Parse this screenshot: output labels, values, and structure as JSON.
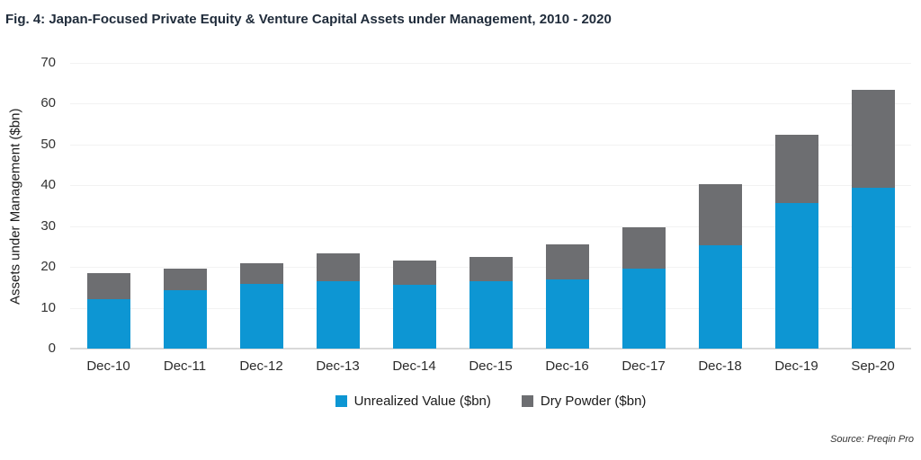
{
  "title": "Fig. 4: Japan-Focused Private Equity & Venture Capital Assets under Management, 2010 - 2020",
  "source": "Source: Preqin Pro",
  "chart_data": {
    "type": "bar",
    "stacked": true,
    "title": "Fig. 4: Japan-Focused Private Equity & Venture Capital Assets under Management, 2010 - 2020",
    "xlabel": "",
    "ylabel": "Assets under Management ($bn)",
    "ylim": [
      0,
      70
    ],
    "ytick_step": 10,
    "grid": true,
    "legend_position": "bottom",
    "categories": [
      "Dec-10",
      "Dec-11",
      "Dec-12",
      "Dec-13",
      "Dec-14",
      "Dec-15",
      "Dec-16",
      "Dec-17",
      "Dec-18",
      "Dec-19",
      "Sep-20"
    ],
    "series": [
      {
        "name": "Unrealized Value ($bn)",
        "color": "#0d96d3",
        "values": [
          12.0,
          14.3,
          15.8,
          16.5,
          15.7,
          16.6,
          16.9,
          19.6,
          25.3,
          35.6,
          39.5
        ]
      },
      {
        "name": "Dry Powder ($bn)",
        "color": "#6d6e71",
        "values": [
          6.5,
          5.4,
          5.2,
          6.8,
          5.8,
          5.8,
          8.6,
          10.1,
          14.9,
          16.9,
          23.8
        ]
      }
    ]
  }
}
